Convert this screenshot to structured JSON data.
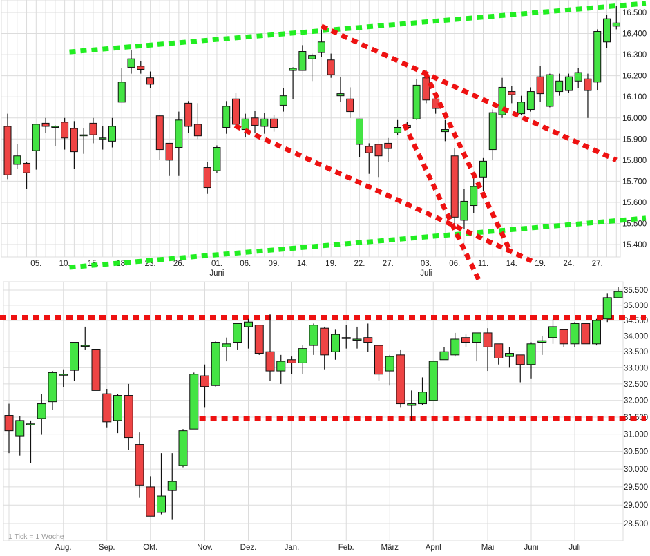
{
  "chart_data": [
    {
      "type": "candlestick",
      "panel": "top",
      "title": "",
      "y_scale": "linear",
      "ylim": [
        15370,
        16560
      ],
      "grid": true,
      "y_ticks": [
        {
          "value": 16500,
          "label": "16.500"
        },
        {
          "value": 16400,
          "label": "16.400"
        },
        {
          "value": 16300,
          "label": "16.300"
        },
        {
          "value": 16200,
          "label": "16.200"
        },
        {
          "value": 16100,
          "label": "16.100"
        },
        {
          "value": 16000,
          "label": "16.000"
        },
        {
          "value": 15900,
          "label": "15.900"
        },
        {
          "value": 15800,
          "label": "15.800"
        },
        {
          "value": 15700,
          "label": "15.700"
        },
        {
          "value": 15600,
          "label": "15.600"
        },
        {
          "value": 15500,
          "label": "15.500"
        },
        {
          "value": 15400,
          "label": "15.400"
        }
      ],
      "x_ticks": [
        {
          "index": 3,
          "label": "05."
        },
        {
          "index": 6,
          "label": "10."
        },
        {
          "index": 9,
          "label": "15."
        },
        {
          "index": 12,
          "label": "18."
        },
        {
          "index": 15,
          "label": "23."
        },
        {
          "index": 18,
          "label": "26."
        },
        {
          "index": 22,
          "label": "01.",
          "sub": "Juni"
        },
        {
          "index": 25,
          "label": "06."
        },
        {
          "index": 28,
          "label": "09."
        },
        {
          "index": 31,
          "label": "14."
        },
        {
          "index": 34,
          "label": "19."
        },
        {
          "index": 37,
          "label": "22."
        },
        {
          "index": 40,
          "label": "27."
        },
        {
          "index": 44,
          "label": "03.",
          "sub": "Juli"
        },
        {
          "index": 47,
          "label": "06."
        },
        {
          "index": 50,
          "label": "11."
        },
        {
          "index": 53,
          "label": "14."
        },
        {
          "index": 56,
          "label": "19."
        },
        {
          "index": 59,
          "label": "24."
        },
        {
          "index": 62,
          "label": "27."
        }
      ],
      "ohlc_fields": [
        "open",
        "high",
        "low",
        "close"
      ],
      "candles": [
        [
          15960,
          16020,
          15710,
          15730
        ],
        [
          15780,
          15875,
          15760,
          15820
        ],
        [
          15785,
          15790,
          15665,
          15740
        ],
        [
          15845,
          15970,
          15755,
          15970
        ],
        [
          15975,
          16000,
          15930,
          15960
        ],
        [
          15955,
          15965,
          15865,
          15960
        ],
        [
          15980,
          16000,
          15850,
          15905
        ],
        [
          15950,
          15985,
          15757,
          15840
        ],
        [
          15920,
          15950,
          15830,
          15920
        ],
        [
          15975,
          16000,
          15880,
          15920
        ],
        [
          15905,
          15960,
          15850,
          15905
        ],
        [
          15890,
          16000,
          15860,
          15960
        ],
        [
          16075,
          16235,
          16075,
          16170
        ],
        [
          16240,
          16320,
          16210,
          16280
        ],
        [
          16245,
          16270,
          16210,
          16230
        ],
        [
          16190,
          16220,
          16140,
          16160
        ],
        [
          16010,
          16015,
          15800,
          15850
        ],
        [
          15880,
          15880,
          15725,
          15800
        ],
        [
          15860,
          16030,
          15725,
          15990
        ],
        [
          16070,
          16080,
          15930,
          15960
        ],
        [
          15970,
          16070,
          15900,
          15915
        ],
        [
          15765,
          15790,
          15640,
          15670
        ],
        [
          15750,
          15870,
          15740,
          15860
        ],
        [
          15955,
          16080,
          15925,
          16055
        ],
        [
          16090,
          16120,
          15950,
          15970
        ],
        [
          15945,
          16020,
          15910,
          15995
        ],
        [
          16000,
          16035,
          15930,
          15965
        ],
        [
          15960,
          16025,
          15925,
          15995
        ],
        [
          15995,
          16015,
          15935,
          15955
        ],
        [
          16060,
          16140,
          16030,
          16105
        ],
        [
          16225,
          16240,
          16090,
          16235
        ],
        [
          16225,
          16345,
          16225,
          16315
        ],
        [
          16280,
          16305,
          16175,
          16295
        ],
        [
          16310,
          16420,
          16290,
          16360
        ],
        [
          16275,
          16305,
          16190,
          16205
        ],
        [
          16105,
          16195,
          16075,
          16115
        ],
        [
          16090,
          16145,
          16000,
          16030
        ],
        [
          15875,
          15995,
          15815,
          15995
        ],
        [
          15865,
          15880,
          15735,
          15835
        ],
        [
          15875,
          15875,
          15720,
          15820
        ],
        [
          15880,
          15905,
          15790,
          15855
        ],
        [
          15930,
          15990,
          15920,
          15955
        ],
        [
          15965,
          15980,
          15945,
          15955
        ],
        [
          15995,
          16185,
          15990,
          16155
        ],
        [
          16190,
          16225,
          16070,
          16085
        ],
        [
          16090,
          16090,
          16020,
          16045
        ],
        [
          15935,
          15990,
          15890,
          15945
        ],
        [
          15820,
          15855,
          15495,
          15530
        ],
        [
          15515,
          15665,
          15475,
          15605
        ],
        [
          15585,
          15735,
          15550,
          15675
        ],
        [
          15720,
          15810,
          15655,
          15795
        ],
        [
          15850,
          16040,
          15800,
          16025
        ],
        [
          16015,
          16190,
          16000,
          16145
        ],
        [
          16125,
          16150,
          16070,
          16110
        ],
        [
          16020,
          16105,
          16015,
          16075
        ],
        [
          16040,
          16145,
          16030,
          16125
        ],
        [
          16195,
          16245,
          16075,
          16115
        ],
        [
          16055,
          16210,
          16050,
          16205
        ],
        [
          16125,
          16210,
          16105,
          16175
        ],
        [
          16130,
          16210,
          16120,
          16195
        ],
        [
          16175,
          16235,
          16140,
          16215
        ],
        [
          16185,
          16210,
          16000,
          16130
        ],
        [
          16170,
          16420,
          16130,
          16410
        ],
        [
          16360,
          16490,
          16330,
          16470
        ],
        [
          16435,
          16530,
          16420,
          16450
        ]
      ],
      "trendlines": [
        {
          "color": "#22ee22",
          "from": [
            6.5,
            16313
          ],
          "to": [
            67.1,
            16543
          ]
        },
        {
          "color": "#22ee22",
          "from": [
            6.5,
            15292
          ],
          "to": [
            67.1,
            15525
          ]
        },
        {
          "color": "#ee1111",
          "from": [
            23.9,
            15963
          ],
          "to": [
            55.1,
            15322
          ]
        },
        {
          "color": "#ee1111",
          "from": [
            33.0,
            16435
          ],
          "to": [
            64.0,
            15800
          ]
        },
        {
          "color": "#ee1111",
          "from": [
            41.7,
            15970
          ],
          "to": [
            49.7,
            15217
          ]
        },
        {
          "color": "#ee1111",
          "from": [
            43.9,
            16215
          ],
          "to": [
            52.9,
            15364
          ]
        }
      ]
    },
    {
      "type": "candlestick",
      "panel": "bottom",
      "title": "",
      "y_scale": "log",
      "ylim": [
        28400,
        35700
      ],
      "grid": true,
      "note": "1 Tick = 1 Woche",
      "y_ticks": [
        {
          "value": 35500,
          "label": "35.500"
        },
        {
          "value": 35000,
          "label": "35.000"
        },
        {
          "value": 34500,
          "label": "34.500"
        },
        {
          "value": 34000,
          "label": "34.000"
        },
        {
          "value": 33500,
          "label": "33.500"
        },
        {
          "value": 33000,
          "label": "33.000"
        },
        {
          "value": 32500,
          "label": "32.500"
        },
        {
          "value": 32000,
          "label": "32.000"
        },
        {
          "value": 31500,
          "label": "31.500"
        },
        {
          "value": 31000,
          "label": "31.000"
        },
        {
          "value": 30500,
          "label": "30.500"
        },
        {
          "value": 30000,
          "label": "30.000"
        },
        {
          "value": 29500,
          "label": "29.500"
        },
        {
          "value": 29000,
          "label": "29.000"
        },
        {
          "value": 28500,
          "label": "28.500"
        }
      ],
      "x_ticks": [
        {
          "index": 5,
          "label": "Aug."
        },
        {
          "index": 9,
          "label": "Sep."
        },
        {
          "index": 13,
          "label": "Okt."
        },
        {
          "index": 18,
          "label": "Nov."
        },
        {
          "index": 22,
          "label": "Dez."
        },
        {
          "index": 26,
          "label": "Jan."
        },
        {
          "index": 31,
          "label": "Feb."
        },
        {
          "index": 35,
          "label": "März"
        },
        {
          "index": 39,
          "label": "April"
        },
        {
          "index": 44,
          "label": "Mai"
        },
        {
          "index": 48,
          "label": "Juni"
        },
        {
          "index": 52,
          "label": "Juli"
        }
      ],
      "ohlc_fields": [
        "open",
        "high",
        "low",
        "close"
      ],
      "candles": [
        [
          31550,
          31900,
          30450,
          31100
        ],
        [
          30950,
          31520,
          30380,
          31400
        ],
        [
          31300,
          31400,
          30160,
          31300
        ],
        [
          31460,
          32200,
          30980,
          31900
        ],
        [
          31960,
          32900,
          31720,
          32850
        ],
        [
          32780,
          32950,
          32400,
          32800
        ],
        [
          32920,
          33800,
          32600,
          33800
        ],
        [
          33700,
          34300,
          33550,
          33700
        ],
        [
          33560,
          33560,
          32300,
          32300
        ],
        [
          32200,
          32350,
          31200,
          31360
        ],
        [
          31400,
          32200,
          31030,
          32150
        ],
        [
          32150,
          32500,
          30550,
          30900
        ],
        [
          30700,
          31050,
          29200,
          29550
        ],
        [
          29500,
          29800,
          28700,
          28700
        ],
        [
          28800,
          30450,
          28750,
          29250
        ],
        [
          29400,
          30450,
          28600,
          29650
        ],
        [
          30100,
          31150,
          30050,
          31100
        ],
        [
          31150,
          32850,
          31150,
          32800
        ],
        [
          32750,
          33100,
          31800,
          32420
        ],
        [
          32450,
          33850,
          32400,
          33800
        ],
        [
          33650,
          33950,
          33200,
          33750
        ],
        [
          33800,
          34400,
          33550,
          34400
        ],
        [
          34300,
          34550,
          33600,
          34450
        ],
        [
          34350,
          34350,
          33400,
          33450
        ],
        [
          33500,
          34700,
          32600,
          32900
        ],
        [
          32900,
          33400,
          32500,
          33200
        ],
        [
          33250,
          33350,
          32800,
          33150
        ],
        [
          33150,
          33700,
          32800,
          33600
        ],
        [
          33700,
          34400,
          33400,
          34350
        ],
        [
          34250,
          34300,
          32950,
          33400
        ],
        [
          33500,
          34200,
          33250,
          34050
        ],
        [
          33950,
          34350,
          33600,
          33950
        ],
        [
          33900,
          34300,
          33600,
          33900
        ],
        [
          33950,
          34400,
          33500,
          33800
        ],
        [
          33700,
          33700,
          32600,
          32800
        ],
        [
          32900,
          33400,
          32450,
          33350
        ],
        [
          33400,
          33550,
          31800,
          31900
        ],
        [
          31850,
          32300,
          31400,
          31900
        ],
        [
          31900,
          32700,
          31850,
          32250
        ],
        [
          32000,
          33200,
          32000,
          33200
        ],
        [
          33250,
          33650,
          33250,
          33500
        ],
        [
          33400,
          34100,
          33350,
          33900
        ],
        [
          33950,
          34050,
          33650,
          33800
        ],
        [
          33800,
          34100,
          33200,
          34100
        ],
        [
          34100,
          34250,
          32900,
          33650
        ],
        [
          33750,
          33750,
          33100,
          33300
        ],
        [
          33350,
          33650,
          33000,
          33450
        ],
        [
          33400,
          33400,
          32550,
          33100
        ],
        [
          33100,
          33800,
          32650,
          33750
        ],
        [
          33800,
          34000,
          33400,
          33850
        ],
        [
          33950,
          34550,
          33750,
          34300
        ],
        [
          34200,
          34200,
          33650,
          33750
        ],
        [
          33750,
          34450,
          33650,
          34400
        ],
        [
          34400,
          34400,
          33750,
          33750
        ],
        [
          33750,
          34550,
          33700,
          34500
        ],
        [
          34550,
          35400,
          34450,
          35250
        ],
        [
          35250,
          35600,
          35250,
          35450
        ]
      ],
      "levels": [
        {
          "value": 34600,
          "color": "#ee1111",
          "from_index": -1
        },
        {
          "value": 31450,
          "color": "#ee1111",
          "from_index": 17.5
        }
      ]
    }
  ],
  "colors": {
    "up": "#44e444",
    "down": "#ee4444",
    "grid": "#dcdcdc",
    "outline": "#111111"
  }
}
